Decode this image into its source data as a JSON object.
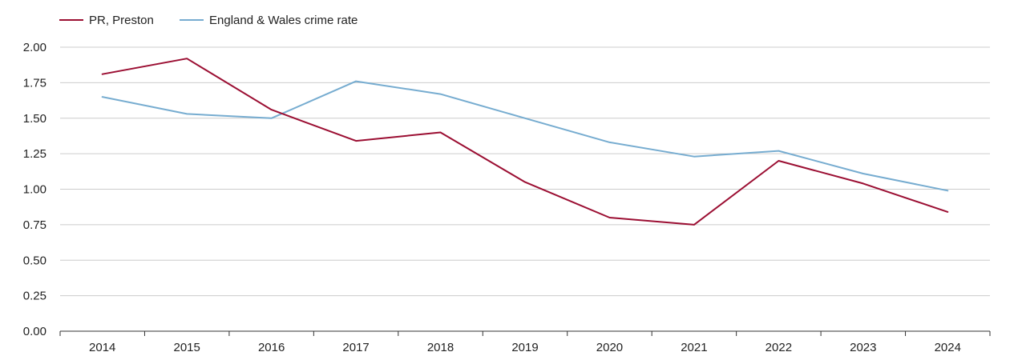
{
  "chart_data": {
    "type": "line",
    "title": "",
    "xlabel": "",
    "ylabel": "",
    "categories": [
      "2014",
      "2015",
      "2016",
      "2017",
      "2018",
      "2019",
      "2020",
      "2021",
      "2022",
      "2023",
      "2024"
    ],
    "ylim": [
      0,
      2.0
    ],
    "yticks": [
      0,
      0.25,
      0.5,
      0.75,
      1.0,
      1.25,
      1.5,
      1.75,
      2.0
    ],
    "ytick_labels": [
      "0.00",
      "0.25",
      "0.50",
      "0.75",
      "1.00",
      "1.25",
      "1.50",
      "1.75",
      "2.00"
    ],
    "grid": true,
    "legend_position": "top-left",
    "series": [
      {
        "name": "PR, Preston",
        "color": "#9b0e32",
        "values": [
          1.81,
          1.92,
          1.56,
          1.34,
          1.4,
          1.05,
          0.8,
          0.75,
          1.2,
          1.04,
          0.84
        ]
      },
      {
        "name": "England & Wales crime rate",
        "color": "#76acd0",
        "values": [
          1.65,
          1.53,
          1.5,
          1.76,
          1.67,
          1.5,
          1.33,
          1.23,
          1.27,
          1.11,
          0.99
        ]
      }
    ]
  }
}
